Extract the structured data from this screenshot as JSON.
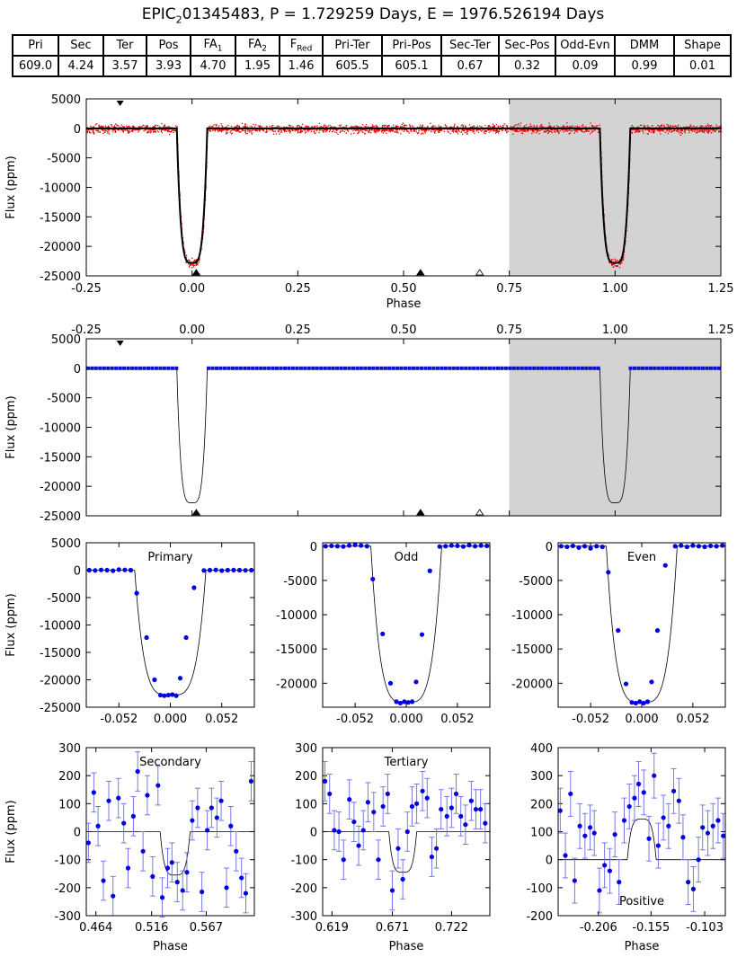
{
  "title": {
    "main": "EPIC",
    "sub": "2",
    "rest": "01345483, P = 1.729259 Days, E = 1976.526194 Days"
  },
  "stats_table": {
    "headers": [
      {
        "main": "Pri",
        "sub": ""
      },
      {
        "main": "Sec",
        "sub": ""
      },
      {
        "main": "Ter",
        "sub": ""
      },
      {
        "main": "Pos",
        "sub": ""
      },
      {
        "main": "FA",
        "sub": "1"
      },
      {
        "main": "FA",
        "sub": "2"
      },
      {
        "main": "F",
        "sub": "Red"
      },
      {
        "main": "Pri-Ter",
        "sub": ""
      },
      {
        "main": "Pri-Pos",
        "sub": ""
      },
      {
        "main": "Sec-Ter",
        "sub": ""
      },
      {
        "main": "Sec-Pos",
        "sub": ""
      },
      {
        "main": "Odd-Evn",
        "sub": ""
      },
      {
        "main": "DMM",
        "sub": ""
      },
      {
        "main": "Shape",
        "sub": ""
      }
    ],
    "values": [
      "609.0",
      "4.24",
      "3.57",
      "3.93",
      "4.70",
      "1.95",
      "1.46",
      "605.5",
      "605.1",
      "0.67",
      "0.32",
      "0.09",
      "0.99",
      "0.01"
    ]
  },
  "chart_data": [
    {
      "id": "full_phase_raw",
      "type": "scatter",
      "xlabel": "Phase",
      "ylabel": "Flux (ppm)",
      "xlim": [
        -0.25,
        1.25
      ],
      "ylim": [
        -25000,
        5000
      ],
      "xticks": [
        "-0.25",
        "0.00",
        "0.25",
        "0.50",
        "0.75",
        "1.00",
        "1.25"
      ],
      "yticks": [
        "5000",
        "0",
        "-5000",
        "-10000",
        "-15000",
        "-20000",
        "-25000"
      ],
      "shaded_region": [
        0.75,
        1.25
      ],
      "transit": {
        "center": 0.0,
        "repeat": 1.0,
        "depth": 22800,
        "half_width": 0.036
      },
      "markers": [
        {
          "phase": -0.17,
          "type": "filled-down",
          "edge": "top"
        },
        {
          "phase": 0.01,
          "type": "filled-up",
          "edge": "bottom"
        },
        {
          "phase": 0.54,
          "type": "filled-up",
          "edge": "bottom"
        },
        {
          "phase": 0.68,
          "type": "open-up",
          "edge": "bottom"
        }
      ],
      "series": [
        {
          "style": "red-points-with-black-model"
        }
      ]
    },
    {
      "id": "full_phase_binned",
      "type": "scatter",
      "xlabel": "",
      "ylabel": "Flux (ppm)",
      "xlim": [
        -0.25,
        1.25
      ],
      "ylim": [
        -25000,
        5000
      ],
      "xticks": [
        "-0.25",
        "0.00",
        "0.25",
        "0.50",
        "0.75",
        "1.00",
        "1.25"
      ],
      "yticks": [
        "5000",
        "0",
        "-5000",
        "-10000",
        "-15000",
        "-20000",
        "-25000"
      ],
      "shaded_region": [
        0.75,
        1.25
      ],
      "transit": {
        "center": 0.0,
        "repeat": 1.0,
        "depth": 22800,
        "half_width": 0.036
      },
      "markers": [
        {
          "phase": -0.17,
          "type": "filled-down",
          "edge": "top"
        },
        {
          "phase": 0.01,
          "type": "filled-up",
          "edge": "bottom"
        },
        {
          "phase": 0.54,
          "type": "filled-up",
          "edge": "bottom"
        },
        {
          "phase": 0.68,
          "type": "open-up",
          "edge": "bottom"
        }
      ],
      "series": [
        {
          "style": "blue-binned-points-with-model"
        }
      ]
    },
    {
      "id": "primary",
      "type": "scatter",
      "label": "Primary",
      "ylabel": "Flux (ppm)",
      "xlim": [
        -0.085,
        0.085
      ],
      "ylim": [
        -25000,
        5000
      ],
      "xticks": [
        {
          "v": -0.052,
          "t": "-0.052"
        },
        {
          "v": 0.0,
          "t": "0.000"
        },
        {
          "v": 0.052,
          "t": "0.052"
        }
      ],
      "yticks": [
        {
          "v": 5000,
          "t": "5000"
        },
        {
          "v": 0,
          "t": "0"
        },
        {
          "v": -5000,
          "t": "-5000"
        },
        {
          "v": -10000,
          "t": "-10000"
        },
        {
          "v": -15000,
          "t": "-15000"
        },
        {
          "v": -20000,
          "t": "-20000"
        },
        {
          "v": -25000,
          "t": "-25000"
        }
      ],
      "x": [
        -0.082,
        -0.076,
        -0.07,
        -0.064,
        -0.058,
        -0.052,
        -0.046,
        -0.04,
        -0.034,
        -0.024,
        -0.016,
        -0.01,
        -0.006,
        -0.002,
        0.002,
        0.006,
        0.01,
        0.016,
        0.024,
        0.034,
        0.04,
        0.046,
        0.052,
        0.058,
        0.064,
        0.07,
        0.076,
        0.082
      ],
      "y": [
        0,
        -50,
        50,
        0,
        -100,
        100,
        50,
        0,
        -4200,
        -12300,
        -20000,
        -22800,
        -22900,
        -22800,
        -22700,
        -22900,
        -19700,
        -12300,
        -3200,
        -50,
        0,
        50,
        -80,
        0,
        20,
        0,
        -30,
        0
      ],
      "model": {
        "depth": 22800,
        "half_width": 0.036
      }
    },
    {
      "id": "odd",
      "type": "scatter",
      "label": "Odd",
      "xlim": [
        -0.085,
        0.085
      ],
      "ylim": [
        -23500,
        500
      ],
      "xticks": [
        {
          "v": -0.052,
          "t": "-0.052"
        },
        {
          "v": 0.0,
          "t": "0.000"
        },
        {
          "v": 0.052,
          "t": "0.052"
        }
      ],
      "yticks": [
        {
          "v": 0,
          "t": "0"
        },
        {
          "v": -5000,
          "t": "-5000"
        },
        {
          "v": -10000,
          "t": "-10000"
        },
        {
          "v": -15000,
          "t": "-15000"
        },
        {
          "v": -20000,
          "t": "-20000"
        }
      ],
      "x": [
        -0.082,
        -0.076,
        -0.07,
        -0.064,
        -0.058,
        -0.052,
        -0.046,
        -0.04,
        -0.034,
        -0.024,
        -0.016,
        -0.01,
        -0.006,
        -0.002,
        0.002,
        0.006,
        0.01,
        0.016,
        0.024,
        0.034,
        0.04,
        0.046,
        0.052,
        0.058,
        0.064,
        0.07,
        0.076,
        0.082
      ],
      "y": [
        0,
        50,
        0,
        -50,
        100,
        200,
        100,
        0,
        -4800,
        -12800,
        -20000,
        -22700,
        -22900,
        -22700,
        -22800,
        -22700,
        -19800,
        -12900,
        -3600,
        -50,
        0,
        100,
        50,
        -50,
        150,
        0,
        100,
        50
      ],
      "model": {
        "depth": 22800,
        "half_width": 0.036
      }
    },
    {
      "id": "even",
      "type": "scatter",
      "label": "Even",
      "xlim": [
        -0.085,
        0.085
      ],
      "ylim": [
        -23500,
        500
      ],
      "xticks": [
        {
          "v": -0.052,
          "t": "-0.052"
        },
        {
          "v": 0.0,
          "t": "0.000"
        },
        {
          "v": 0.052,
          "t": "0.052"
        }
      ],
      "yticks": [
        {
          "v": 0,
          "t": "0"
        },
        {
          "v": -5000,
          "t": "-5000"
        },
        {
          "v": -10000,
          "t": "-10000"
        },
        {
          "v": -15000,
          "t": "-15000"
        },
        {
          "v": -20000,
          "t": "-20000"
        }
      ],
      "x": [
        -0.082,
        -0.076,
        -0.07,
        -0.064,
        -0.058,
        -0.052,
        -0.046,
        -0.04,
        -0.034,
        -0.024,
        -0.016,
        -0.01,
        -0.006,
        -0.002,
        0.002,
        0.006,
        0.01,
        0.016,
        0.024,
        0.034,
        0.04,
        0.046,
        0.052,
        0.058,
        0.064,
        0.07,
        0.076,
        0.082
      ],
      "y": [
        0,
        -100,
        50,
        -200,
        0,
        -300,
        0,
        -100,
        -3800,
        -12300,
        -20100,
        -22800,
        -22900,
        -22700,
        -22900,
        -22700,
        -19800,
        -12300,
        -2800,
        0,
        100,
        -100,
        100,
        0,
        -100,
        50,
        0,
        100
      ],
      "model": {
        "depth": 22800,
        "half_width": 0.036
      }
    },
    {
      "id": "secondary",
      "type": "scatter",
      "label": "Secondary",
      "xlabel": "Phase",
      "ylabel": "Flux (ppm)",
      "xlim": [
        0.455,
        0.612
      ],
      "ylim": [
        -300,
        300
      ],
      "xticks": [
        {
          "v": 0.464,
          "t": "0.464"
        },
        {
          "v": 0.516,
          "t": "0.516"
        },
        {
          "v": 0.567,
          "t": "0.567"
        }
      ],
      "yticks": [
        {
          "v": 300,
          "t": "300"
        },
        {
          "v": 200,
          "t": "200"
        },
        {
          "v": 100,
          "t": "100"
        },
        {
          "v": 0,
          "t": "0"
        },
        {
          "v": -100,
          "t": "-100"
        },
        {
          "v": -200,
          "t": "-200"
        },
        {
          "v": -300,
          "t": "-300"
        }
      ],
      "x": [
        0.457,
        0.462,
        0.466,
        0.471,
        0.476,
        0.48,
        0.485,
        0.49,
        0.494,
        0.499,
        0.503,
        0.508,
        0.512,
        0.517,
        0.522,
        0.526,
        0.531,
        0.535,
        0.54,
        0.545,
        0.549,
        0.554,
        0.559,
        0.563,
        0.568,
        0.572,
        0.577,
        0.581,
        0.586,
        0.59,
        0.595,
        0.6,
        0.604,
        0.609
      ],
      "y": [
        -40,
        140,
        20,
        -175,
        110,
        -230,
        120,
        30,
        -130,
        55,
        215,
        -70,
        130,
        -160,
        165,
        -235,
        -130,
        -110,
        -180,
        -210,
        -145,
        40,
        85,
        -215,
        5,
        85,
        50,
        110,
        -200,
        20,
        -70,
        -165,
        -220,
        180
      ],
      "err": 70,
      "model": {
        "depth": 155,
        "center": 0.538,
        "half_width": 0.014
      }
    },
    {
      "id": "tertiary",
      "type": "scatter",
      "label": "Tertiary",
      "xlabel": "Phase",
      "xlim": [
        0.611,
        0.755
      ],
      "ylim": [
        -300,
        300
      ],
      "xticks": [
        {
          "v": 0.619,
          "t": "0.619"
        },
        {
          "v": 0.671,
          "t": "0.671"
        },
        {
          "v": 0.722,
          "t": "0.722"
        }
      ],
      "yticks": [
        {
          "v": 300,
          "t": "300"
        },
        {
          "v": 200,
          "t": "200"
        },
        {
          "v": 100,
          "t": "100"
        },
        {
          "v": 0,
          "t": "0"
        },
        {
          "v": -100,
          "t": "-100"
        },
        {
          "v": -200,
          "t": "-200"
        },
        {
          "v": -300,
          "t": "-300"
        }
      ],
      "x": [
        0.613,
        0.617,
        0.621,
        0.625,
        0.629,
        0.634,
        0.638,
        0.642,
        0.646,
        0.65,
        0.655,
        0.659,
        0.663,
        0.667,
        0.671,
        0.676,
        0.68,
        0.684,
        0.688,
        0.692,
        0.697,
        0.701,
        0.705,
        0.709,
        0.713,
        0.718,
        0.722,
        0.726,
        0.73,
        0.734,
        0.739,
        0.743,
        0.747,
        0.751
      ],
      "y": [
        180,
        135,
        5,
        0,
        -100,
        115,
        35,
        -50,
        5,
        105,
        70,
        -100,
        90,
        135,
        -210,
        -60,
        -170,
        0,
        90,
        100,
        145,
        120,
        -90,
        -60,
        80,
        55,
        85,
        135,
        55,
        25,
        110,
        80,
        80,
        30
      ],
      "err": 70,
      "model": {
        "depth": 145,
        "center": 0.68,
        "half_width": 0.012
      }
    },
    {
      "id": "positive",
      "type": "scatter",
      "label": "Positive",
      "xlabel": "Phase",
      "xlim": [
        -0.245,
        -0.083
      ],
      "ylim": [
        -200,
        400
      ],
      "xticks": [
        {
          "v": -0.206,
          "t": "-0.206"
        },
        {
          "v": -0.155,
          "t": "-0.155"
        },
        {
          "v": -0.103,
          "t": "-0.103"
        }
      ],
      "yticks": [
        {
          "v": 400,
          "t": "400"
        },
        {
          "v": 300,
          "t": "300"
        },
        {
          "v": 200,
          "t": "200"
        },
        {
          "v": 100,
          "t": "100"
        },
        {
          "v": 0,
          "t": "0"
        },
        {
          "v": -100,
          "t": "-100"
        },
        {
          "v": -200,
          "t": "-200"
        }
      ],
      "x": [
        -0.243,
        -0.238,
        -0.233,
        -0.229,
        -0.224,
        -0.219,
        -0.214,
        -0.21,
        -0.205,
        -0.2,
        -0.195,
        -0.19,
        -0.186,
        -0.181,
        -0.176,
        -0.171,
        -0.167,
        -0.162,
        -0.157,
        -0.152,
        -0.148,
        -0.143,
        -0.138,
        -0.133,
        -0.128,
        -0.124,
        -0.119,
        -0.114,
        -0.109,
        -0.105,
        -0.1,
        -0.095,
        -0.09,
        -0.085
      ],
      "y": [
        175,
        15,
        235,
        -75,
        120,
        85,
        115,
        95,
        -110,
        -20,
        -40,
        90,
        -80,
        140,
        190,
        220,
        270,
        240,
        75,
        300,
        50,
        150,
        120,
        245,
        210,
        80,
        -80,
        -105,
        0,
        115,
        95,
        120,
        140,
        85
      ],
      "err": 80,
      "model": {
        "depth": -145,
        "center": -0.164,
        "half_width": 0.014
      }
    }
  ]
}
